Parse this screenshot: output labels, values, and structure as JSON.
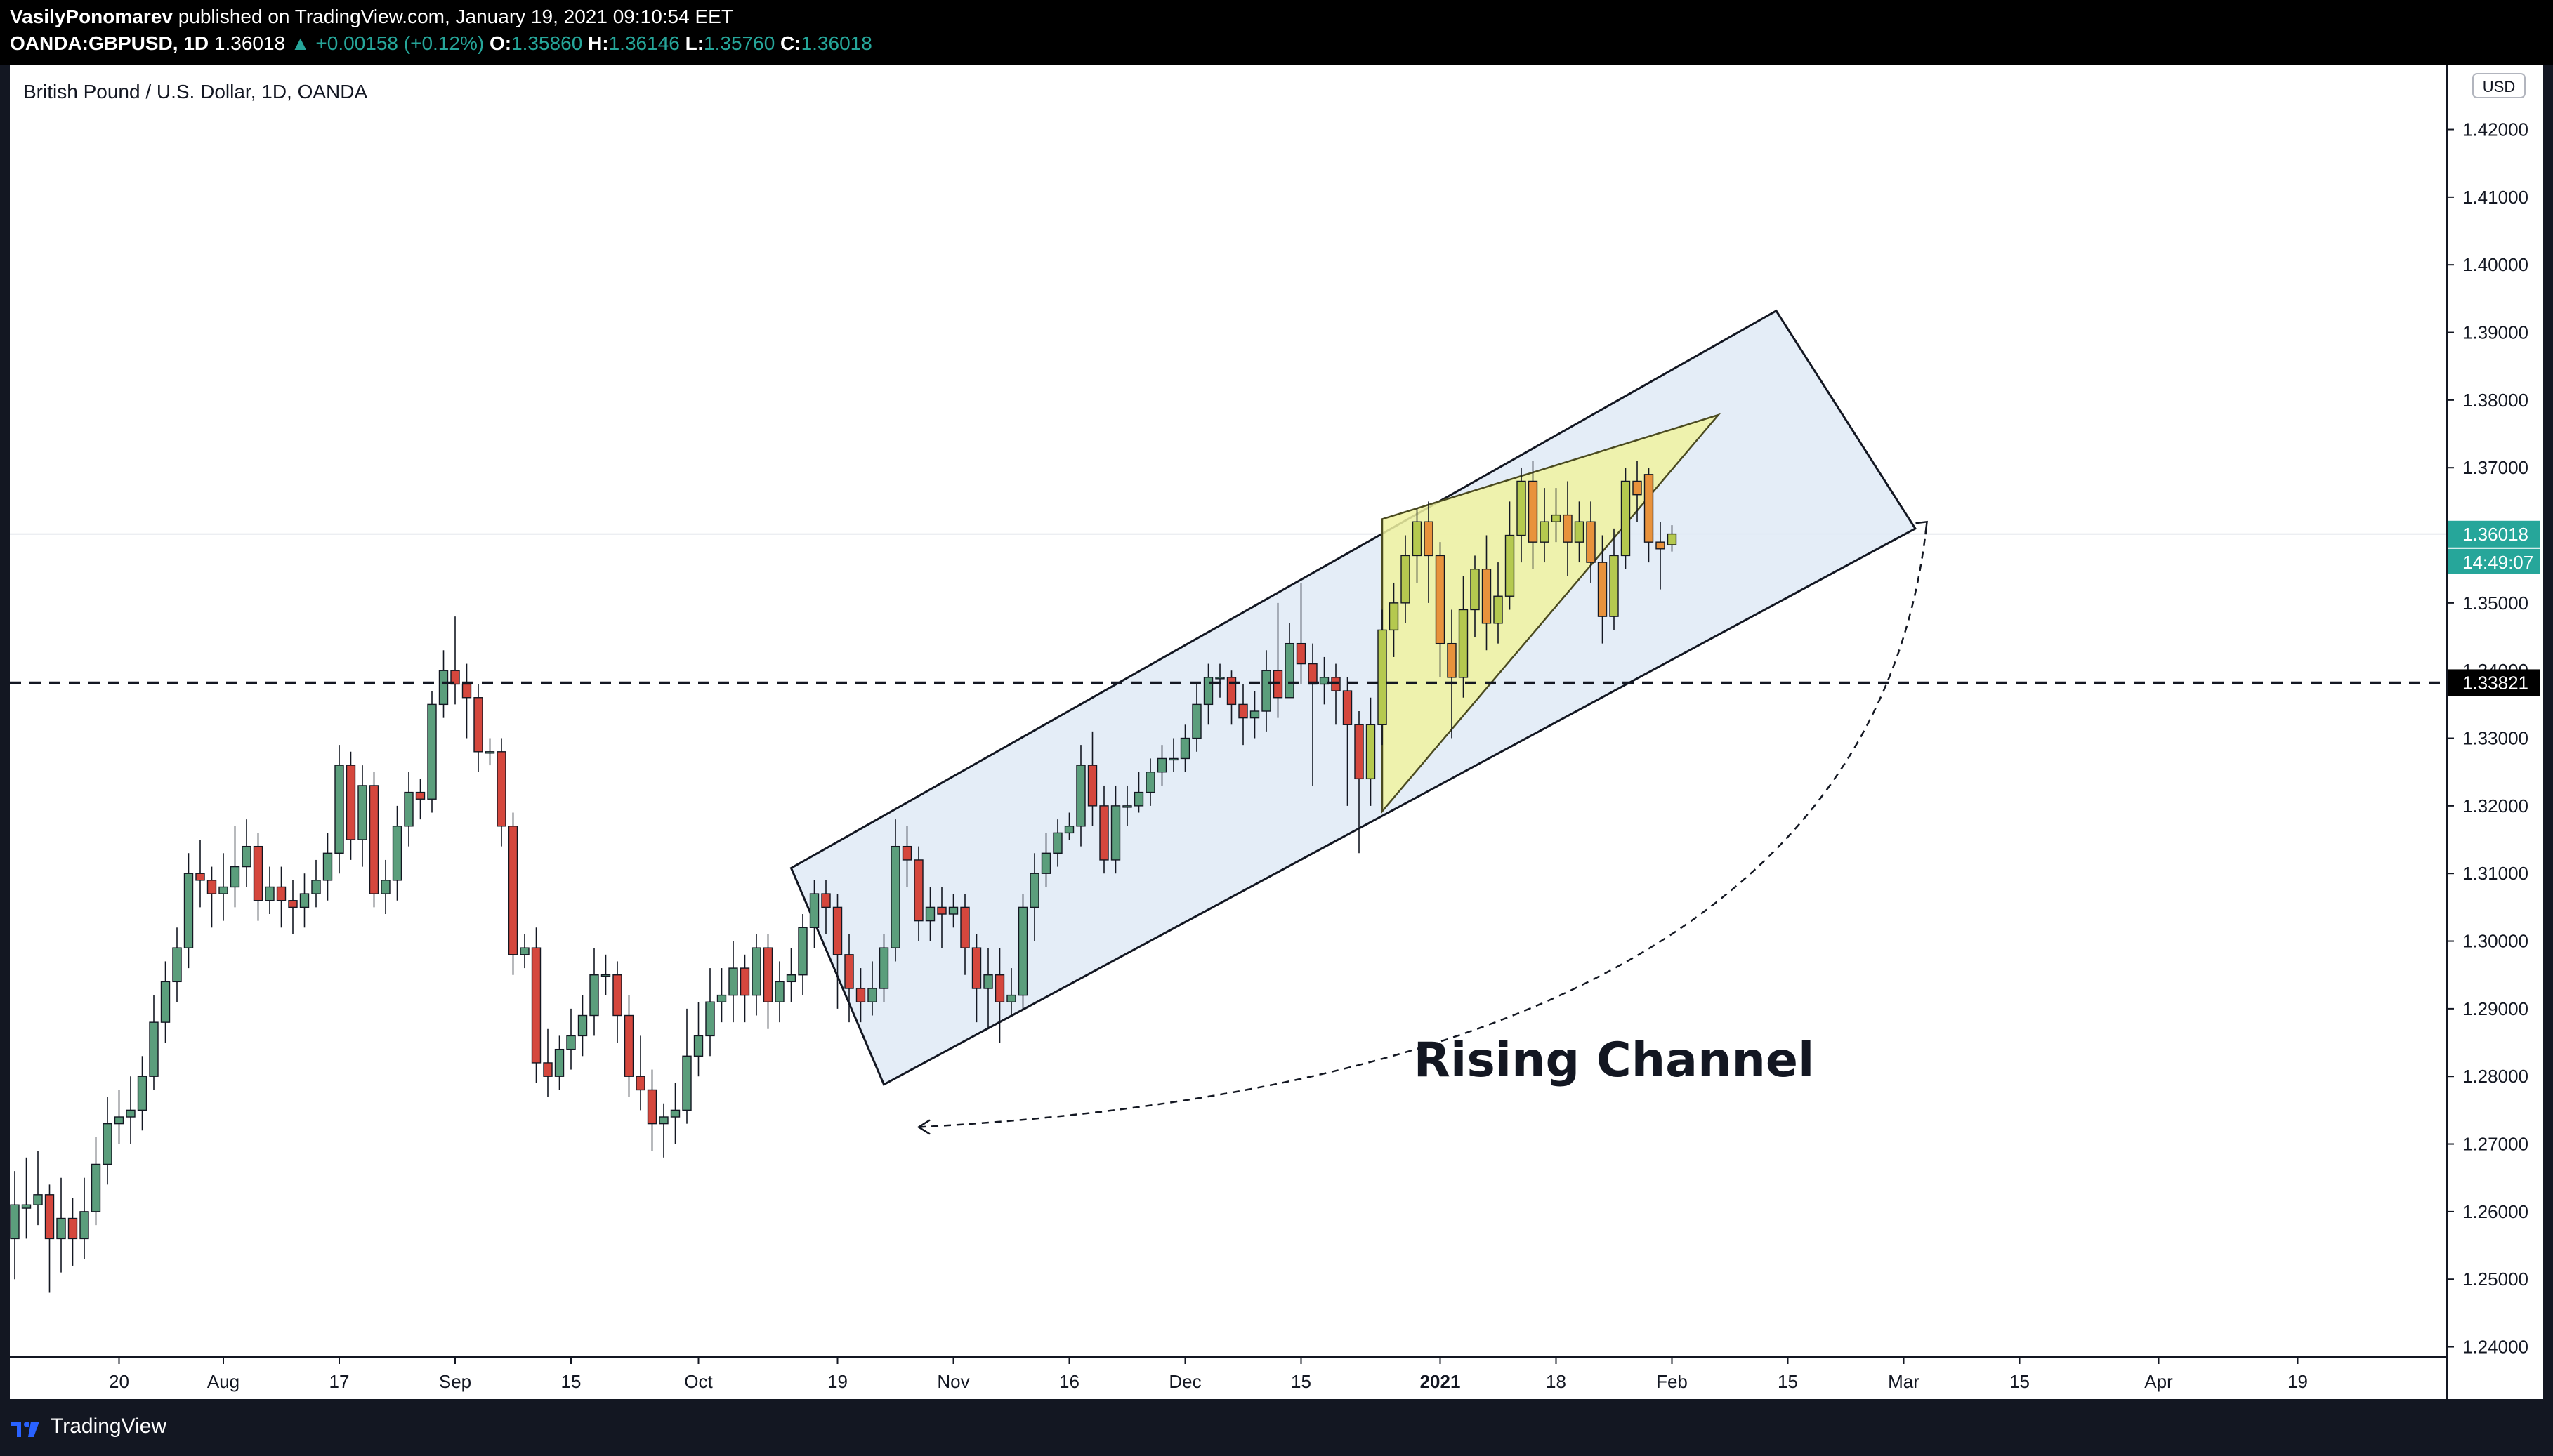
{
  "header": {
    "author": "VasilyPonomarev",
    "published": "published on TradingView.com, January 19, 2021 09:10:54 EET",
    "symbol": "OANDA:GBPUSD, 1D",
    "last": "1.36018",
    "change_arrow": "▲",
    "change": "+0.00158 (+0.12%)",
    "o_label": "O:",
    "o": "1.35860",
    "h_label": "H:",
    "h": "1.36146",
    "l_label": "L:",
    "l": "1.35760",
    "c_label": "C:",
    "c": "1.36018"
  },
  "footer": {
    "brand": "TradingView",
    "logo_icon": "tradingview-logo-icon"
  },
  "colors": {
    "up": "#5b9e7c",
    "down": "#d5473d",
    "pattern_up": "#b5c94f",
    "pattern_down": "#e8923c",
    "channel_fill": "#dfeaf6",
    "wedge_fill": "#f0f2a0",
    "last_price": "#26a69a"
  },
  "chart_data": {
    "type": "candlestick",
    "title": "British Pound / U.S. Dollar, 1D, OANDA",
    "currency": "USD",
    "ylim": [
      1.2385,
      1.4295
    ],
    "y_ticks": [
      "1.24000",
      "1.25000",
      "1.26000",
      "1.27000",
      "1.28000",
      "1.29000",
      "1.30000",
      "1.31000",
      "1.32000",
      "1.33000",
      "1.34000",
      "1.35000",
      "1.36000",
      "1.37000",
      "1.38000",
      "1.39000",
      "1.40000",
      "1.41000",
      "1.42000"
    ],
    "x_ticks": [
      {
        "label": "20",
        "i": 9
      },
      {
        "label": "Aug",
        "i": 18
      },
      {
        "label": "17",
        "i": 28
      },
      {
        "label": "Sep",
        "i": 38
      },
      {
        "label": "15",
        "i": 48
      },
      {
        "label": "Oct",
        "i": 59
      },
      {
        "label": "19",
        "i": 71
      },
      {
        "label": "Nov",
        "i": 81
      },
      {
        "label": "16",
        "i": 91
      },
      {
        "label": "Dec",
        "i": 101
      },
      {
        "label": "15",
        "i": 111
      },
      {
        "label": "2021",
        "i": 123
      },
      {
        "label": "18",
        "i": 133
      },
      {
        "label": "Feb",
        "i": 143
      },
      {
        "label": "15",
        "i": 153
      },
      {
        "label": "Mar",
        "i": 163
      },
      {
        "label": "15",
        "i": 173
      },
      {
        "label": "Apr",
        "i": 185
      },
      {
        "label": "19",
        "i": 197
      }
    ],
    "candles": [
      [
        1.256,
        1.261,
        1.266,
        1.25
      ],
      [
        1.2605,
        1.261,
        1.268,
        1.256
      ],
      [
        1.261,
        1.2625,
        1.269,
        1.258
      ],
      [
        1.2625,
        1.256,
        1.264,
        1.248
      ],
      [
        1.256,
        1.259,
        1.265,
        1.251
      ],
      [
        1.259,
        1.256,
        1.262,
        1.252
      ],
      [
        1.256,
        1.26,
        1.265,
        1.253
      ],
      [
        1.26,
        1.267,
        1.271,
        1.258
      ],
      [
        1.267,
        1.273,
        1.277,
        1.264
      ],
      [
        1.273,
        1.274,
        1.278,
        1.27
      ],
      [
        1.274,
        1.275,
        1.28,
        1.27
      ],
      [
        1.275,
        1.28,
        1.283,
        1.272
      ],
      [
        1.28,
        1.288,
        1.292,
        1.278
      ],
      [
        1.288,
        1.294,
        1.297,
        1.285
      ],
      [
        1.294,
        1.299,
        1.302,
        1.291
      ],
      [
        1.299,
        1.31,
        1.313,
        1.296
      ],
      [
        1.31,
        1.309,
        1.315,
        1.305
      ],
      [
        1.309,
        1.307,
        1.311,
        1.302
      ],
      [
        1.307,
        1.308,
        1.313,
        1.303
      ],
      [
        1.308,
        1.311,
        1.317,
        1.305
      ],
      [
        1.311,
        1.314,
        1.318,
        1.308
      ],
      [
        1.314,
        1.306,
        1.316,
        1.303
      ],
      [
        1.306,
        1.308,
        1.311,
        1.304
      ],
      [
        1.308,
        1.306,
        1.311,
        1.302
      ],
      [
        1.306,
        1.305,
        1.309,
        1.301
      ],
      [
        1.305,
        1.307,
        1.31,
        1.302
      ],
      [
        1.307,
        1.309,
        1.312,
        1.305
      ],
      [
        1.309,
        1.313,
        1.316,
        1.306
      ],
      [
        1.313,
        1.326,
        1.329,
        1.31
      ],
      [
        1.326,
        1.315,
        1.328,
        1.312
      ],
      [
        1.315,
        1.323,
        1.326,
        1.311
      ],
      [
        1.323,
        1.307,
        1.325,
        1.305
      ],
      [
        1.307,
        1.309,
        1.312,
        1.304
      ],
      [
        1.309,
        1.317,
        1.32,
        1.306
      ],
      [
        1.317,
        1.322,
        1.325,
        1.314
      ],
      [
        1.322,
        1.321,
        1.324,
        1.318
      ],
      [
        1.321,
        1.335,
        1.337,
        1.319
      ],
      [
        1.335,
        1.34,
        1.343,
        1.333
      ],
      [
        1.34,
        1.338,
        1.348,
        1.335
      ],
      [
        1.338,
        1.336,
        1.341,
        1.33
      ],
      [
        1.336,
        1.328,
        1.338,
        1.325
      ],
      [
        1.328,
        1.328,
        1.33,
        1.326
      ],
      [
        1.328,
        1.317,
        1.33,
        1.314
      ],
      [
        1.317,
        1.298,
        1.319,
        1.295
      ],
      [
        1.298,
        1.299,
        1.301,
        1.296
      ],
      [
        1.299,
        1.282,
        1.302,
        1.279
      ],
      [
        1.282,
        1.28,
        1.287,
        1.277
      ],
      [
        1.28,
        1.284,
        1.286,
        1.278
      ],
      [
        1.284,
        1.286,
        1.29,
        1.281
      ],
      [
        1.286,
        1.289,
        1.292,
        1.283
      ],
      [
        1.289,
        1.295,
        1.299,
        1.286
      ],
      [
        1.295,
        1.295,
        1.298,
        1.292
      ],
      [
        1.295,
        1.289,
        1.297,
        1.285
      ],
      [
        1.289,
        1.28,
        1.292,
        1.277
      ],
      [
        1.28,
        1.278,
        1.286,
        1.275
      ],
      [
        1.278,
        1.273,
        1.281,
        1.269
      ],
      [
        1.273,
        1.274,
        1.276,
        1.268
      ],
      [
        1.274,
        1.275,
        1.279,
        1.27
      ],
      [
        1.275,
        1.283,
        1.29,
        1.273
      ],
      [
        1.283,
        1.286,
        1.291,
        1.28
      ],
      [
        1.286,
        1.291,
        1.296,
        1.283
      ],
      [
        1.291,
        1.292,
        1.296,
        1.288
      ],
      [
        1.292,
        1.296,
        1.3,
        1.288
      ],
      [
        1.296,
        1.292,
        1.298,
        1.288
      ],
      [
        1.292,
        1.299,
        1.301,
        1.289
      ],
      [
        1.299,
        1.291,
        1.301,
        1.287
      ],
      [
        1.291,
        1.294,
        1.297,
        1.288
      ],
      [
        1.294,
        1.295,
        1.299,
        1.291
      ],
      [
        1.295,
        1.302,
        1.304,
        1.292
      ],
      [
        1.302,
        1.307,
        1.309,
        1.299
      ],
      [
        1.307,
        1.305,
        1.309,
        1.301
      ],
      [
        1.305,
        1.298,
        1.307,
        1.29
      ],
      [
        1.298,
        1.293,
        1.301,
        1.288
      ],
      [
        1.293,
        1.291,
        1.296,
        1.288
      ],
      [
        1.291,
        1.293,
        1.297,
        1.289
      ],
      [
        1.293,
        1.299,
        1.301,
        1.291
      ],
      [
        1.299,
        1.314,
        1.318,
        1.297
      ],
      [
        1.314,
        1.312,
        1.317,
        1.308
      ],
      [
        1.312,
        1.303,
        1.314,
        1.3
      ],
      [
        1.303,
        1.305,
        1.308,
        1.3
      ],
      [
        1.305,
        1.304,
        1.308,
        1.299
      ],
      [
        1.304,
        1.305,
        1.307,
        1.302
      ],
      [
        1.305,
        1.299,
        1.307,
        1.295
      ],
      [
        1.299,
        1.293,
        1.301,
        1.288
      ],
      [
        1.293,
        1.295,
        1.299,
        1.287
      ],
      [
        1.295,
        1.291,
        1.299,
        1.285
      ],
      [
        1.291,
        1.292,
        1.296,
        1.289
      ],
      [
        1.292,
        1.305,
        1.307,
        1.29
      ],
      [
        1.305,
        1.31,
        1.313,
        1.3
      ],
      [
        1.31,
        1.313,
        1.316,
        1.308
      ],
      [
        1.313,
        1.316,
        1.318,
        1.311
      ],
      [
        1.316,
        1.317,
        1.319,
        1.315
      ],
      [
        1.317,
        1.326,
        1.329,
        1.314
      ],
      [
        1.326,
        1.32,
        1.331,
        1.317
      ],
      [
        1.32,
        1.312,
        1.323,
        1.31
      ],
      [
        1.312,
        1.32,
        1.323,
        1.31
      ],
      [
        1.32,
        1.32,
        1.323,
        1.317
      ],
      [
        1.32,
        1.322,
        1.325,
        1.319
      ],
      [
        1.322,
        1.325,
        1.327,
        1.32
      ],
      [
        1.325,
        1.327,
        1.329,
        1.323
      ],
      [
        1.327,
        1.327,
        1.33,
        1.325
      ],
      [
        1.327,
        1.33,
        1.332,
        1.325
      ],
      [
        1.33,
        1.335,
        1.338,
        1.328
      ],
      [
        1.335,
        1.339,
        1.341,
        1.332
      ],
      [
        1.339,
        1.339,
        1.341,
        1.336
      ],
      [
        1.339,
        1.335,
        1.34,
        1.332
      ],
      [
        1.335,
        1.333,
        1.338,
        1.329
      ],
      [
        1.333,
        1.334,
        1.337,
        1.33
      ],
      [
        1.334,
        1.34,
        1.343,
        1.331
      ],
      [
        1.34,
        1.336,
        1.35,
        1.333
      ],
      [
        1.336,
        1.344,
        1.347,
        1.336
      ],
      [
        1.344,
        1.341,
        1.353,
        1.338
      ],
      [
        1.341,
        1.338,
        1.344,
        1.323
      ],
      [
        1.338,
        1.339,
        1.342,
        1.335
      ],
      [
        1.339,
        1.337,
        1.341,
        1.332
      ],
      [
        1.337,
        1.332,
        1.339,
        1.32
      ],
      [
        1.332,
        1.324,
        1.334,
        1.313
      ],
      [
        1.324,
        1.332,
        1.336,
        1.32
      ],
      [
        1.332,
        1.346,
        1.349,
        1.329
      ],
      [
        1.346,
        1.35,
        1.353,
        1.342
      ],
      [
        1.35,
        1.357,
        1.36,
        1.347
      ],
      [
        1.357,
        1.362,
        1.364,
        1.353
      ],
      [
        1.362,
        1.357,
        1.365,
        1.35
      ],
      [
        1.357,
        1.344,
        1.359,
        1.339
      ],
      [
        1.344,
        1.339,
        1.349,
        1.33
      ],
      [
        1.339,
        1.349,
        1.354,
        1.336
      ],
      [
        1.349,
        1.355,
        1.357,
        1.345
      ],
      [
        1.355,
        1.347,
        1.36,
        1.343
      ],
      [
        1.347,
        1.351,
        1.356,
        1.344
      ],
      [
        1.351,
        1.36,
        1.365,
        1.349
      ],
      [
        1.36,
        1.368,
        1.37,
        1.356
      ],
      [
        1.368,
        1.359,
        1.371,
        1.355
      ],
      [
        1.359,
        1.362,
        1.367,
        1.356
      ],
      [
        1.362,
        1.363,
        1.367,
        1.359
      ],
      [
        1.363,
        1.359,
        1.368,
        1.354
      ],
      [
        1.359,
        1.362,
        1.365,
        1.356
      ],
      [
        1.362,
        1.356,
        1.365,
        1.353
      ],
      [
        1.356,
        1.348,
        1.36,
        1.344
      ],
      [
        1.348,
        1.357,
        1.361,
        1.346
      ],
      [
        1.357,
        1.368,
        1.37,
        1.355
      ],
      [
        1.368,
        1.366,
        1.371,
        1.362
      ],
      [
        1.369,
        1.359,
        1.37,
        1.356
      ],
      [
        1.359,
        1.358,
        1.362,
        1.352
      ],
      [
        1.3586,
        1.3602,
        1.3615,
        1.3576
      ]
    ],
    "pattern_start_index": 117,
    "horizontal_level": {
      "value": 1.33821,
      "label": "1.33821"
    },
    "last_price": {
      "value": 1.36018,
      "label": "1.36018",
      "countdown": "14:49:07"
    },
    "channel": [
      [
        67,
        1.3108
      ],
      [
        75,
        1.2788
      ],
      [
        164,
        1.361
      ],
      [
        152,
        1.3932
      ]
    ],
    "wedge": [
      [
        118,
        1.3624
      ],
      [
        147,
        1.3778
      ],
      [
        118,
        1.3192
      ]
    ],
    "arc_arrow": {
      "from": [
        78,
        1.2725
      ],
      "control": [
        160,
        1.28
      ],
      "to": [
        165,
        1.362
      ]
    },
    "annotation": {
      "text": "Rising Channel",
      "i": 138,
      "y": 1.28
    }
  }
}
